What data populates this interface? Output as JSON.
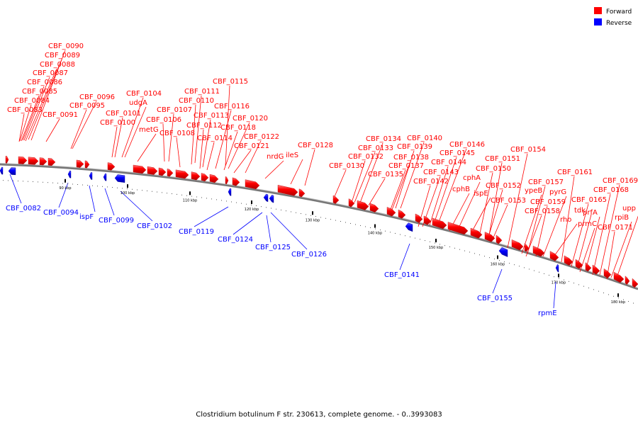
{
  "caption": "Clostridium botulinum F str. 230613, complete genome. - 0..3993083",
  "legend": [
    {
      "label": "Forward",
      "color": "#ff0000"
    },
    {
      "label": "Reverse",
      "color": "#0000ff"
    }
  ],
  "colors": {
    "forward": "#ff0000",
    "reverse": "#0000ff",
    "backbone": "#7f7f7f",
    "leader_fwd": "#ff0000",
    "leader_rev": "#0000ff"
  },
  "ticks": [
    "90 kbp",
    "100 kbp",
    "110 kbp",
    "120 kbp",
    "130 kbp",
    "140 kbp",
    "150 kbp",
    "160 kbp",
    "170 kbp",
    "180 kbp"
  ],
  "forward_labels": [
    "CBF_0090",
    "CBF_0089",
    "CBF_0088",
    "CBF_0087",
    "CBF_0086",
    "CBF_0085",
    "CBF_0084",
    "CBF_0083",
    "CBF_0091",
    "CBF_0096",
    "CBF_0095",
    "CBF_0104",
    "udgA",
    "CBF_0101",
    "CBF_0100",
    "CBF_0107",
    "metG",
    "CBF_0106",
    "CBF_0111",
    "CBF_0110",
    "CBF_0108",
    "CBF_0113",
    "CBF_0112",
    "CBF_0114",
    "CBF_0115",
    "CBF_0116",
    "CBF_0120",
    "CBF_0118",
    "CBF_0122",
    "CBF_0121",
    "nrdG",
    "ileS",
    "CBF_0128",
    "CBF_0130",
    "CBF_0134",
    "CBF_0133",
    "CBF_0132",
    "CBF_0135",
    "CBF_0140",
    "CBF_0139",
    "CBF_0138",
    "CBF_0137",
    "CBF_0146",
    "CBF_0145",
    "CBF_0144",
    "CBF_0143",
    "CBF_0142",
    "cphA",
    "cphB",
    "ispE",
    "CBF_0151",
    "CBF_0150",
    "CBF_0152",
    "CBF_0153",
    "CBF_0154",
    "CBF_0157",
    "ypeB",
    "pyrG",
    "CBF_0159",
    "CBF_0158",
    "rho",
    "CBF_0161",
    "CBF_0165",
    "tdk",
    "prfA",
    "prmC",
    "CBF_0169",
    "CBF_0168",
    "upp",
    "rpiB",
    "CBF_0171"
  ],
  "reverse_labels": [
    "CBF_0082",
    "CBF_0094",
    "ispF",
    "CBF_0099",
    "CBF_0102",
    "CBF_0119",
    "CBF_0124",
    "CBF_0125",
    "CBF_0126",
    "CBF_0141",
    "CBF_0155",
    "rpmE"
  ]
}
